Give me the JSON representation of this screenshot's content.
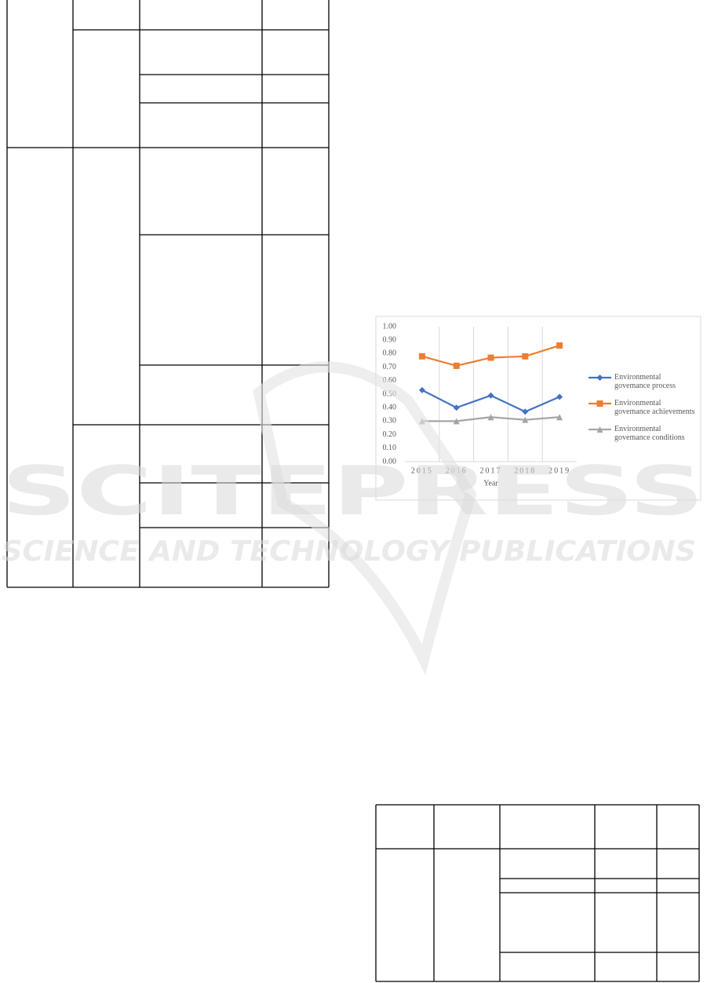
{
  "watermark": {
    "title": "SCITEPRESS",
    "subtitle": "SCIENCE AND TECHNOLOGY PUBLICATIONS"
  },
  "chart_data": {
    "type": "line",
    "xlabel": "Year",
    "categories": [
      "2015",
      "2016",
      "2017",
      "2018",
      "2019"
    ],
    "series": [
      {
        "name": "Environmental\ngovemance process",
        "color": "#4472c4",
        "marker": "diamond",
        "values": [
          0.53,
          0.4,
          0.49,
          0.37,
          0.48
        ]
      },
      {
        "name": "Environmental\ngovemance achievements",
        "color": "#ed7d31",
        "marker": "square",
        "values": [
          0.78,
          0.71,
          0.77,
          0.78,
          0.86
        ]
      },
      {
        "name": "Environmental\ngovemance conditions",
        "color": "#a5a5a5",
        "marker": "triangle",
        "values": [
          0.3,
          0.3,
          0.33,
          0.31,
          0.33
        ]
      }
    ],
    "ylim": [
      0,
      1
    ],
    "yticks": [
      {
        "value": 0,
        "label": "0.00"
      },
      {
        "value": 0.1,
        "label": "0.10"
      },
      {
        "value": 0.2,
        "label": "0.20"
      },
      {
        "value": 0.3,
        "label": "0.30"
      },
      {
        "value": 0.4,
        "label": "0.40"
      },
      {
        "value": 0.5,
        "label": "0.50"
      },
      {
        "value": 0.6,
        "label": "0.60"
      },
      {
        "value": 0.7,
        "label": "0.70"
      },
      {
        "value": 0.8,
        "label": "0.80"
      },
      {
        "value": 0.9,
        "label": "0.90"
      },
      {
        "value": 1,
        "label": "1.00"
      }
    ],
    "grid": "vertical",
    "legend": "right"
  }
}
